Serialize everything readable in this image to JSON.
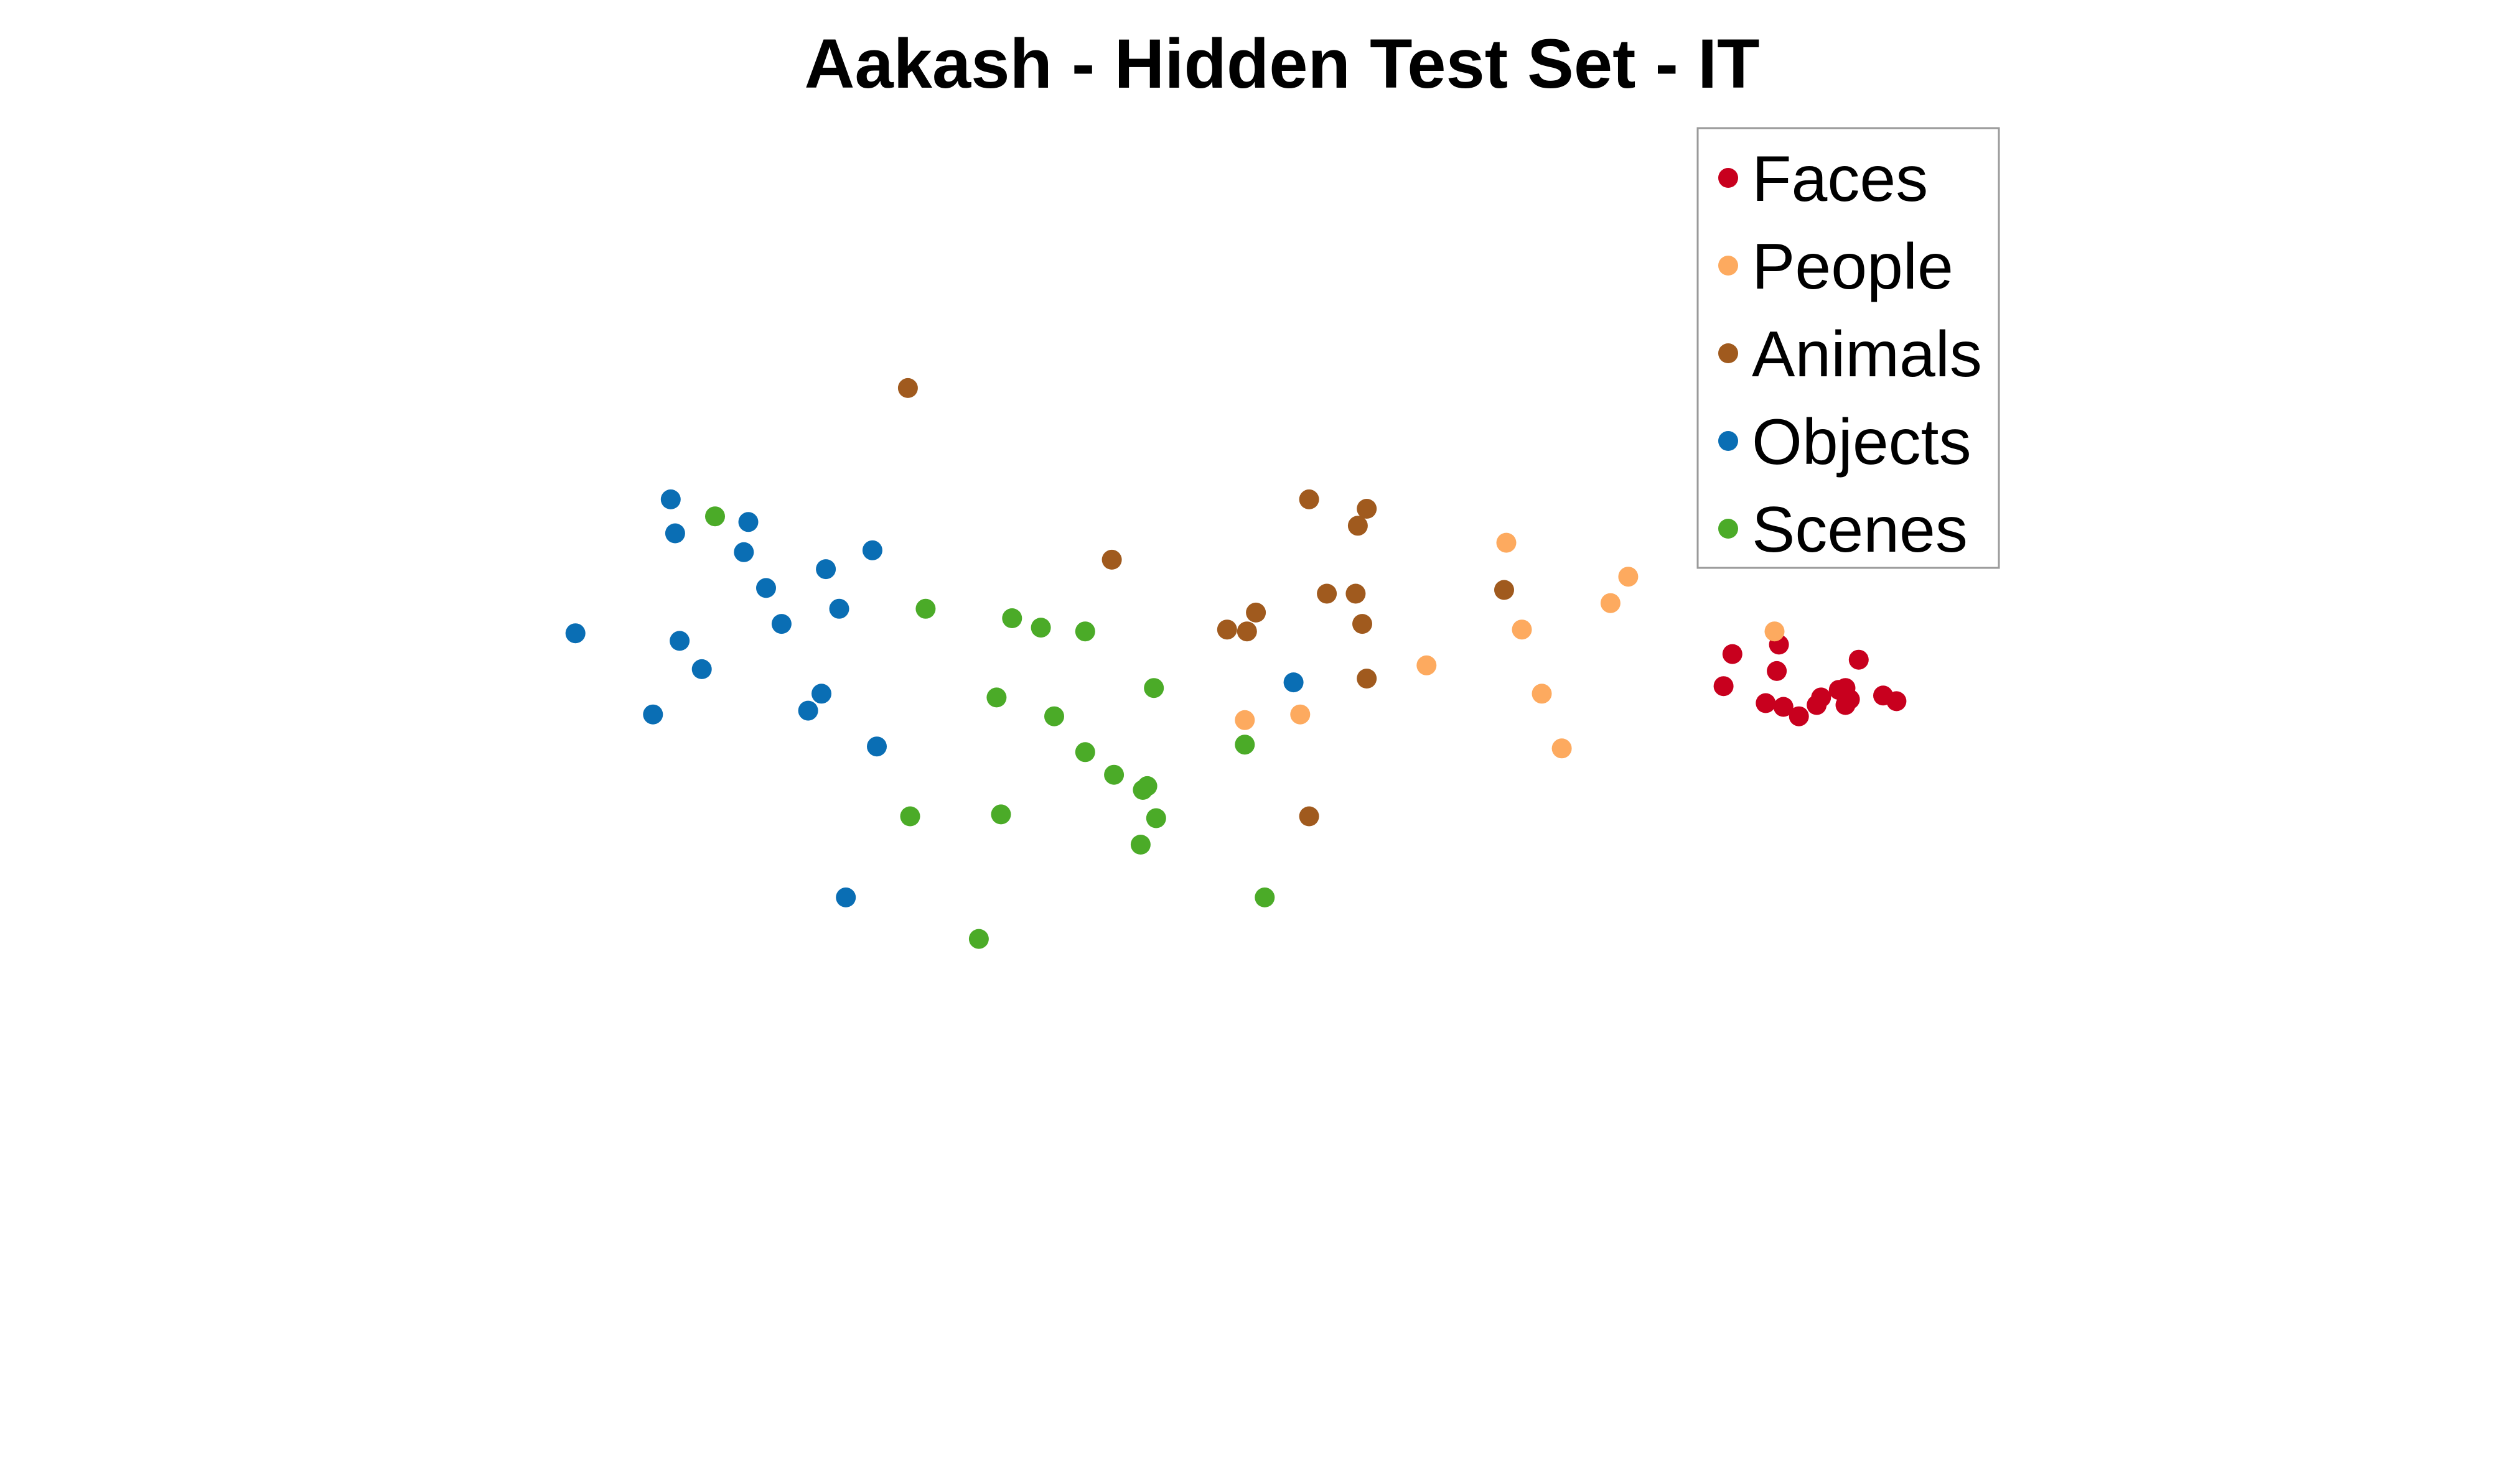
{
  "chart_data": {
    "type": "scatter",
    "title": "Aakash - Hidden Test Set - IT",
    "xlabel": "",
    "ylabel": "",
    "axes_visible": false,
    "grid": false,
    "legend_position": "top-right",
    "xlim": [
      -3.5,
      3.8
    ],
    "ylim": [
      -3.6,
      2.4
    ],
    "series": [
      {
        "name": "Faces",
        "color": "#c8001e",
        "points": [
          [
            2.03,
            -0.05
          ],
          [
            2.07,
            0.12
          ],
          [
            2.28,
            0.17
          ],
          [
            2.27,
            0.03
          ],
          [
            2.22,
            -0.14
          ],
          [
            2.3,
            -0.16
          ],
          [
            2.37,
            -0.21
          ],
          [
            2.45,
            -0.15
          ],
          [
            2.47,
            -0.11
          ],
          [
            2.55,
            -0.07
          ],
          [
            2.58,
            -0.06
          ],
          [
            2.58,
            -0.15
          ],
          [
            2.6,
            -0.12
          ],
          [
            2.64,
            0.09
          ],
          [
            2.75,
            -0.1
          ],
          [
            2.81,
            -0.13
          ]
        ]
      },
      {
        "name": "People",
        "color": "#fdaa5f",
        "points": [
          [
            0.69,
            0.06
          ],
          [
            1.05,
            0.71
          ],
          [
            1.12,
            0.25
          ],
          [
            1.21,
            -0.09
          ],
          [
            1.3,
            -0.38
          ],
          [
            1.52,
            0.39
          ],
          [
            1.6,
            0.53
          ],
          [
            2.26,
            0.24
          ],
          [
            2.5,
            0.68
          ],
          [
            -0.13,
            -0.23
          ],
          [
            0.12,
            -0.2
          ]
        ]
      },
      {
        "name": "Animals",
        "color": "#a05a1e",
        "points": [
          [
            -1.65,
            1.53
          ],
          [
            -0.73,
            0.62
          ],
          [
            -0.21,
            0.25
          ],
          [
            -0.12,
            0.24
          ],
          [
            -0.08,
            0.34
          ],
          [
            0.16,
            0.94
          ],
          [
            0.24,
            0.44
          ],
          [
            0.37,
            0.44
          ],
          [
            0.38,
            0.8
          ],
          [
            0.4,
            0.28
          ],
          [
            0.42,
            0.89
          ],
          [
            0.42,
            -0.01
          ],
          [
            1.04,
            0.46
          ],
          [
            0.16,
            -0.74
          ]
        ]
      },
      {
        "name": "Objects",
        "color": "#0a6eb4",
        "points": [
          [
            -3.15,
            0.23
          ],
          [
            -2.8,
            -0.2
          ],
          [
            -2.72,
            0.94
          ],
          [
            -2.7,
            0.76
          ],
          [
            -2.68,
            0.19
          ],
          [
            -2.58,
            0.04
          ],
          [
            -2.39,
            0.66
          ],
          [
            -2.37,
            0.82
          ],
          [
            -2.29,
            0.47
          ],
          [
            -2.22,
            0.28
          ],
          [
            -2.1,
            -0.18
          ],
          [
            -2.04,
            -0.09
          ],
          [
            -2.02,
            0.57
          ],
          [
            -1.96,
            0.36
          ],
          [
            -1.93,
            -1.17
          ],
          [
            -1.81,
            0.67
          ],
          [
            -1.79,
            -0.37
          ],
          [
            0.09,
            -0.03
          ]
        ]
      },
      {
        "name": "Scenes",
        "color": "#4bab28",
        "points": [
          [
            -2.52,
            0.85
          ],
          [
            -1.64,
            -0.74
          ],
          [
            -1.57,
            0.36
          ],
          [
            -1.33,
            -1.39
          ],
          [
            -1.25,
            -0.11
          ],
          [
            -1.23,
            -0.73
          ],
          [
            -1.18,
            0.31
          ],
          [
            -1.05,
            0.26
          ],
          [
            -0.99,
            -0.21
          ],
          [
            -0.85,
            -0.4
          ],
          [
            -0.85,
            0.24
          ],
          [
            -0.72,
            -0.52
          ],
          [
            -0.6,
            -0.89
          ],
          [
            -0.59,
            -0.6
          ],
          [
            -0.57,
            -0.58
          ],
          [
            -0.54,
            -0.06
          ],
          [
            -0.53,
            -0.75
          ],
          [
            -0.13,
            -0.36
          ],
          [
            -0.04,
            -1.17
          ]
        ]
      }
    ]
  }
}
